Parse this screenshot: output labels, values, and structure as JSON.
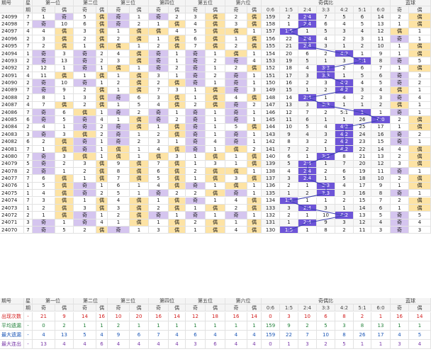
{
  "groups": [
    "第一位",
    "第二位",
    "第三位",
    "第四位",
    "第五位",
    "第六位"
  ],
  "oddeven_title": "奇偶比",
  "blue_title": "蓝球",
  "star_label": "星",
  "period_label": "期",
  "issue_label": "期号",
  "odd": "奇",
  "even": "偶",
  "ratios": [
    "0:6",
    "1:5",
    "2:4",
    "3:3",
    "4:2",
    "5:1",
    "6:0"
  ],
  "rows": [
    {
      "issue": "24099",
      "star": "7",
      "cells": [
        "1",
        "奇",
        "5",
        "偶",
        "奇",
        "1",
        "奇",
        "2",
        "3",
        "偶",
        "2",
        "偶",
        "159",
        "2",
        "2:4",
        "7",
        "5",
        "6",
        "14",
        "2",
        "偶"
      ],
      "ratio": 2
    },
    {
      "issue": "24098",
      "star": "7",
      "cells": [
        "奇",
        "10",
        "6",
        "偶",
        "奇",
        "2",
        "1",
        "偶",
        "4",
        "偶",
        "3",
        "偶",
        "158",
        "1",
        "2:4",
        "6",
        "4",
        "5",
        "13",
        "1",
        "偶"
      ],
      "ratio": 2
    },
    {
      "issue": "24097",
      "star": "4",
      "cells": [
        "4",
        "偶",
        "3",
        "偶",
        "1",
        "偶",
        "偶",
        "4",
        "5",
        "偶",
        "偶",
        "1",
        "157",
        "1:5",
        "1",
        "5",
        "3",
        "4",
        "12",
        "偶",
        "1"
      ],
      "ratio": 1
    },
    {
      "issue": "24096",
      "star": "2",
      "cells": [
        "3",
        "偶",
        "2",
        "偶",
        "2",
        "偶",
        "1",
        "偶",
        "6",
        "偶",
        "1",
        "偶",
        "156",
        "22",
        "2:4",
        "4",
        "2",
        "3",
        "11",
        "奇",
        "1"
      ],
      "ratio": 2
    },
    {
      "issue": "24095",
      "star": "7",
      "cells": [
        "2",
        "偶",
        "1",
        "偶",
        "偶",
        "1",
        "2",
        "偶",
        "7",
        "偶",
        "2",
        "偶",
        "155",
        "21",
        "2:4",
        "3",
        "1",
        "2",
        "10",
        "1",
        "偶"
      ],
      "ratio": 2
    },
    {
      "issue": "24094",
      "star": "1",
      "cells": [
        "奇",
        "3",
        "奇",
        "2",
        "4",
        "偶",
        "奇",
        "1",
        "奇",
        "1",
        "偶",
        "1",
        "154",
        "20",
        "6",
        "2",
        "4:2",
        "1",
        "9",
        "1",
        "偶"
      ],
      "ratio": 4
    },
    {
      "issue": "24093",
      "star": "2",
      "cells": [
        "奇",
        "13",
        "奇",
        "2",
        "3",
        "偶",
        "奇",
        "1",
        "奇",
        "2",
        "奇",
        "4",
        "153",
        "19",
        "5",
        "1",
        "3",
        "5:1",
        "8",
        "奇",
        "5"
      ],
      "ratio": 5
    },
    {
      "issue": "24092",
      "star": "2",
      "cells": [
        "12",
        "1",
        "奇",
        "1",
        "偶",
        "1",
        "奇",
        "2",
        "奇",
        "1",
        "2",
        "偶",
        "152",
        "18",
        "4",
        "3:3",
        "2",
        "6",
        "7",
        "1",
        "偶"
      ],
      "ratio": 3
    },
    {
      "issue": "24091",
      "star": "4",
      "cells": [
        "11",
        "偶",
        "1",
        "偶",
        "1",
        "偶",
        "3",
        "1",
        "奇",
        "2",
        "奇",
        "1",
        "151",
        "17",
        "3",
        "3:3",
        "1",
        "5",
        "6",
        "奇",
        "3"
      ],
      "ratio": 3
    },
    {
      "issue": "24090",
      "star": "2",
      "cells": [
        "奇",
        "10",
        "奇",
        "1",
        "2",
        "偶",
        "2",
        "偶",
        "奇",
        "1",
        "奇",
        "1",
        "150",
        "16",
        "2",
        "3",
        "4:2",
        "4",
        "5",
        "奇",
        "2"
      ],
      "ratio": 4
    },
    {
      "issue": "24089",
      "star": "7",
      "cells": [
        "奇",
        "9",
        "2",
        "偶",
        "1",
        "偶",
        "7",
        "3",
        "1",
        "偶",
        "奇",
        "3",
        "149",
        "15",
        "1",
        "2",
        "4:2",
        "3",
        "4",
        "偶",
        "1"
      ],
      "ratio": 4
    },
    {
      "issue": "24088",
      "star": "2",
      "cells": [
        "8",
        "1",
        "3",
        "偶",
        "奇",
        "6",
        "3",
        "偶",
        "1",
        "偶",
        "4",
        "偶",
        "148",
        "14",
        "2:4",
        "1",
        "4",
        "2",
        "3",
        "奇",
        "4"
      ],
      "ratio": 2
    },
    {
      "issue": "24087",
      "star": "4",
      "cells": [
        "7",
        "偶",
        "2",
        "偶",
        "1",
        "5",
        "4",
        "偶",
        "2",
        "偶",
        "奇",
        "2",
        "147",
        "13",
        "3",
        "3:3",
        "1",
        "1",
        "2",
        "偶",
        "1"
      ],
      "ratio": 3
    },
    {
      "issue": "24086",
      "star": "7",
      "cells": [
        "奇",
        "6",
        "偶",
        "1",
        "奇",
        "2",
        "奇",
        "1",
        "奇",
        "1",
        "奇",
        "1",
        "146",
        "12",
        "7",
        "2",
        "5:1",
        "1",
        "1",
        "奇",
        "1"
      ],
      "ratio": 5
    },
    {
      "issue": "24085",
      "star": "6",
      "cells": [
        "奇",
        "5",
        "奇",
        "4",
        "1",
        "偶",
        "奇",
        "2",
        "奇",
        "1",
        "奇",
        "1",
        "145",
        "11",
        "6",
        "1",
        "1",
        "26",
        "6:0",
        "2",
        "偶"
      ],
      "ratio": 6
    },
    {
      "issue": "24084",
      "star": "2",
      "cells": [
        "4",
        "1",
        "奇",
        "2",
        "奇",
        "偶",
        "1",
        "偶",
        "奇",
        "1",
        "5",
        "偶",
        "144",
        "10",
        "5",
        "4",
        "4:2",
        "25",
        "17",
        "1",
        "偶"
      ],
      "ratio": 4
    },
    {
      "issue": "24083",
      "star": "3",
      "cells": [
        "奇",
        "3",
        "偶",
        "2",
        "奇",
        "1",
        "2",
        "偶",
        "奇",
        "1",
        "奇",
        "1",
        "143",
        "9",
        "4",
        "3",
        "4:2",
        "24",
        "16",
        "奇",
        "2"
      ],
      "ratio": 4
    },
    {
      "issue": "24082",
      "star": "6",
      "cells": [
        "2",
        "偶",
        "奇",
        "1",
        "奇",
        "2",
        "3",
        "1",
        "奇",
        "4",
        "奇",
        "1",
        "142",
        "8",
        "3",
        "2",
        "4:2",
        "23",
        "15",
        "奇",
        "1"
      ],
      "ratio": 4
    },
    {
      "issue": "24081",
      "star": "7",
      "cells": [
        "1",
        "偶",
        "奇",
        "1",
        "偶",
        "1",
        "4",
        "偶",
        "奇",
        "1",
        "偶",
        "2",
        "141",
        "7",
        "2",
        "1",
        "4:2",
        "22",
        "14",
        "4",
        "偶"
      ],
      "ratio": 4
    },
    {
      "issue": "24080",
      "star": "7",
      "cells": [
        "奇",
        "3",
        "偶",
        "1",
        "偶",
        "1",
        "偶",
        "3",
        "1",
        "偶",
        "1",
        "偶",
        "140",
        "6",
        "1",
        "3:3",
        "8",
        "21",
        "13",
        "2",
        "偶"
      ],
      "ratio": 3
    },
    {
      "issue": "24079",
      "star": "5",
      "cells": [
        "奇",
        "2",
        "3",
        "偶",
        "9",
        "偶",
        "7",
        "偶",
        "1",
        "3",
        "1",
        "偶",
        "139",
        "5",
        "2:4",
        "1",
        "7",
        "20",
        "12",
        "3",
        "偶"
      ],
      "ratio": 2
    },
    {
      "issue": "24078",
      "star": "2",
      "cells": [
        "奇",
        "1",
        "2",
        "偶",
        "8",
        "偶",
        "6",
        "偶",
        "2",
        "偶",
        "偶",
        "1",
        "138",
        "4",
        "2:4",
        "2",
        "6",
        "19",
        "11",
        "奇",
        "1"
      ],
      "ratio": 2
    },
    {
      "issue": "24077",
      "star": "7",
      "cells": [
        "6",
        "偶",
        "1",
        "偶",
        "7",
        "偶",
        "5",
        "偶",
        "1",
        "偶",
        "3",
        "偶",
        "137",
        "3",
        "2:4",
        "1",
        "5",
        "18",
        "10",
        "2",
        "偶"
      ],
      "ratio": 2
    },
    {
      "issue": "24076",
      "star": "1",
      "cells": [
        "5",
        "偶",
        "奇",
        "1",
        "6",
        "1",
        "4",
        "偶",
        "奇",
        "1",
        "偶",
        "1",
        "136",
        "2",
        "1",
        "3:3",
        "4",
        "17",
        "9",
        "1",
        "偶"
      ],
      "ratio": 3
    },
    {
      "issue": "24075",
      "star": "1",
      "cells": [
        "4",
        "偶",
        "奇",
        "2",
        "5",
        "1",
        "奇",
        "2",
        "2",
        "偶",
        "奇",
        "1",
        "135",
        "1",
        "2",
        "3:3",
        "3",
        "16",
        "8",
        "奇",
        "1"
      ],
      "ratio": 3
    },
    {
      "issue": "24074",
      "star": "7",
      "cells": [
        "3",
        "偶",
        "1",
        "偶",
        "4",
        "偶",
        "1",
        "偶",
        "奇",
        "1",
        "4",
        "偶",
        "134",
        "1:5",
        "1",
        "1",
        "2",
        "15",
        "7",
        "2",
        "偶"
      ],
      "ratio": 1
    },
    {
      "issue": "24073",
      "star": "1",
      "cells": [
        "2",
        "偶",
        "3",
        "偶",
        "3",
        "偶",
        "2",
        "偶",
        "1",
        "偶",
        "2",
        "偶",
        "133",
        "3",
        "2:4",
        "3",
        "1",
        "14",
        "6",
        "1",
        "偶"
      ],
      "ratio": 2
    },
    {
      "issue": "24072",
      "star": "2",
      "cells": [
        "1",
        "偶",
        "奇",
        "1",
        "2",
        "偶",
        "奇",
        "1",
        "奇",
        "1",
        "奇",
        "1",
        "132",
        "2",
        "1",
        "10",
        "4:2",
        "13",
        "5",
        "奇",
        "5"
      ],
      "ratio": 4
    },
    {
      "issue": "24071",
      "star": "3",
      "cells": [
        "奇",
        "1",
        "奇",
        "4",
        "1",
        "偶",
        "1",
        "偶",
        "2",
        "偶",
        "1",
        "偶",
        "131",
        "1",
        "2:4",
        "9",
        "3",
        "12",
        "4",
        "奇",
        "4"
      ],
      "ratio": 2
    },
    {
      "issue": "24070",
      "star": "7",
      "cells": [
        "奇",
        "5",
        "2",
        "偶",
        "奇",
        "1",
        "3",
        "偶",
        "1",
        "偶",
        "4",
        "偶",
        "130",
        "1:5",
        "1",
        "8",
        "2",
        "11",
        "3",
        "奇",
        "3"
      ],
      "ratio": 1
    }
  ],
  "stats": [
    {
      "label": "出现次数",
      "sign": "-",
      "cls": "red",
      "values": [
        "21",
        "9",
        "14",
        "16",
        "10",
        "20",
        "16",
        "14",
        "12",
        "18",
        "16",
        "14",
        "0",
        "3",
        "10",
        "6",
        "8",
        "2",
        "1",
        "16",
        "14"
      ]
    },
    {
      "label": "平均遗漏",
      "sign": "-",
      "cls": "grn",
      "values": [
        "0",
        "2",
        "1",
        "1",
        "2",
        "1",
        "1",
        "1",
        "1",
        "1",
        "1",
        "1",
        "159",
        "9",
        "2",
        "5",
        "3",
        "8",
        "13",
        "1",
        "1"
      ]
    },
    {
      "label": "最大遗漏",
      "sign": "-",
      "cls": "blu",
      "values": [
        "4",
        "13",
        "5",
        "4",
        "9",
        "6",
        "7",
        "4",
        "6",
        "4",
        "4",
        "4",
        "159",
        "22",
        "7",
        "10",
        "8",
        "26",
        "17",
        "4",
        "5"
      ]
    },
    {
      "label": "最大连出",
      "sign": "-",
      "cls": "pur",
      "values": [
        "13",
        "4",
        "4",
        "6",
        "4",
        "4",
        "4",
        "4",
        "3",
        "6",
        "4",
        "4",
        "0",
        "1",
        "3",
        "2",
        "5",
        "1",
        "1",
        "3",
        "4"
      ]
    }
  ]
}
